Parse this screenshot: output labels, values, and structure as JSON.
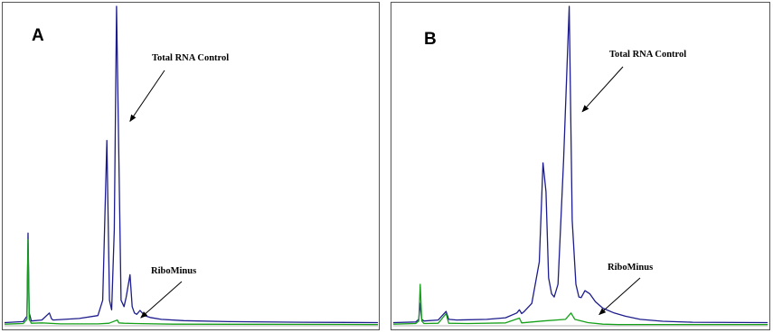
{
  "chart_data": [
    {
      "type": "line",
      "panel_label": "A",
      "x_range": [
        0,
        100
      ],
      "y_range": [
        0,
        100
      ],
      "grid": false,
      "series": [
        {
          "color": "#1c1c8c",
          "x": [
            0,
            5,
            6,
            6.3,
            6.6,
            7.2,
            10,
            12,
            12.6,
            13,
            20,
            25,
            26.3,
            27.4,
            28.1,
            28.7,
            29.4,
            30,
            31.2,
            32,
            32.6,
            33.6,
            34.2,
            34.8,
            35.4,
            36.3,
            37.5,
            39,
            42,
            48,
            60,
            80,
            100
          ],
          "y": [
            1,
            1.3,
            3,
            29,
            4,
            1.5,
            1.8,
            4,
            2.2,
            1.8,
            2.3,
            3.2,
            8,
            58,
            8,
            5,
            30,
            100,
            8,
            6,
            9,
            16,
            6,
            4,
            3.6,
            4.8,
            3.2,
            2.6,
            2,
            1.6,
            1.3,
            1.1,
            1
          ]
        },
        {
          "color": "#16a01a",
          "x": [
            0,
            5,
            6,
            6.3,
            6.6,
            7.2,
            10,
            15,
            25,
            28,
            30.2,
            30.6,
            32,
            35,
            45,
            100
          ],
          "y": [
            0.5,
            0.7,
            2,
            27,
            2,
            0.8,
            0.9,
            0.6,
            0.6,
            0.8,
            1.8,
            0.9,
            0.8,
            0.7,
            0.5,
            0.4
          ]
        }
      ],
      "annotations": [
        {
          "text": "Total RNA Control",
          "target_x": 33.6,
          "target_y": 64
        },
        {
          "text": "RiboMinus",
          "target_x": 36.5,
          "target_y": 2.5
        }
      ]
    },
    {
      "type": "line",
      "panel_label": "B",
      "x_range": [
        0,
        100
      ],
      "y_range": [
        0,
        100
      ],
      "grid": false,
      "series": [
        {
          "color": "#1c1c8c",
          "x": [
            0,
            6,
            6.8,
            7.2,
            7.6,
            8.2,
            12,
            14.1,
            14.8,
            17,
            25,
            30,
            33,
            33.7,
            34.3,
            35,
            37,
            39,
            40,
            40.8,
            41.5,
            42.3,
            43,
            44,
            45.5,
            47,
            47.8,
            48.8,
            49.6,
            50.2,
            51.2,
            52.5,
            54,
            56,
            59,
            62,
            66,
            72,
            80,
            100
          ],
          "y": [
            1,
            1.2,
            2,
            7,
            2,
            1.5,
            1.8,
            4.5,
            2,
            1.8,
            2,
            2.5,
            4,
            5,
            3.8,
            4.5,
            7,
            20,
            51,
            42,
            15,
            10,
            9,
            13,
            52,
            100,
            33,
            13,
            9,
            8.8,
            11,
            10,
            7.5,
            5.5,
            4,
            3,
            2,
            1.4,
            1.1,
            1
          ]
        },
        {
          "color": "#16a01a",
          "x": [
            0,
            6,
            6.8,
            7.2,
            7.6,
            8.2,
            12,
            14.1,
            14.8,
            20,
            30,
            33.7,
            34.3,
            40,
            46,
            47.5,
            48.5,
            52,
            56,
            60,
            100
          ],
          "y": [
            0.5,
            0.7,
            1.5,
            13,
            1.5,
            0.7,
            0.8,
            3.8,
            0.8,
            0.7,
            0.9,
            2.4,
            0.9,
            1.5,
            2,
            4,
            2,
            1,
            0.5,
            0.4,
            0.4
          ]
        }
      ],
      "annotations": [
        {
          "text": "Total RNA Control",
          "target_x": 50.5,
          "target_y": 67
        },
        {
          "text": "RiboMinus",
          "target_x": 55,
          "target_y": 3.5
        }
      ]
    }
  ]
}
